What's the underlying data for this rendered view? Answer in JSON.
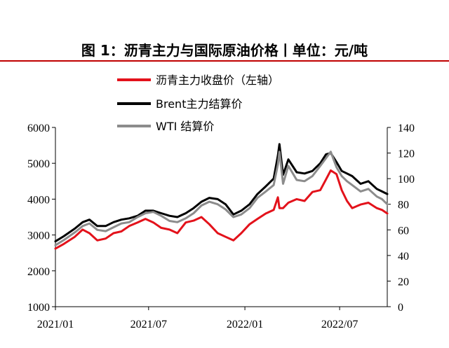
{
  "title": "图 1：沥青主力与国际原油价格丨单位：元/吨",
  "colors": {
    "asphalt": "#e3121b",
    "brent": "#000000",
    "wti": "#8c8c8c",
    "title_rule": "#c00000"
  },
  "chart_data": {
    "type": "line",
    "title": "图 1：沥青主力与国际原油价格丨单位：元/吨",
    "x_tick_labels": [
      "2021/01",
      "2021/07",
      "2022/01",
      "2022/07"
    ],
    "x_range": [
      "2021-01-04",
      "2022-09-30"
    ],
    "y_left": {
      "ticks": [
        "1000",
        "2000",
        "3000",
        "4000",
        "5000",
        "6000"
      ],
      "range": [
        1000,
        6000
      ]
    },
    "y_right": {
      "ticks": [
        "0",
        "20",
        "40",
        "60",
        "80",
        "100",
        "120",
        "140"
      ],
      "range": [
        0,
        140
      ]
    },
    "legend": [
      "沥青主力收盘价（左轴）",
      "Brent主力结算价",
      "WTI 结算价"
    ],
    "legend_placement": "top-center",
    "grid": false,
    "series": [
      {
        "name": "沥青主力收盘价（左轴）",
        "axis": "left",
        "x": [
          "2021-01-04",
          "2021-01-20",
          "2021-02-10",
          "2021-02-25",
          "2021-03-10",
          "2021-03-25",
          "2021-04-10",
          "2021-04-25",
          "2021-05-10",
          "2021-05-25",
          "2021-06-10",
          "2021-06-25",
          "2021-07-10",
          "2021-07-25",
          "2021-08-10",
          "2021-08-25",
          "2021-09-10",
          "2021-09-25",
          "2021-10-10",
          "2021-10-25",
          "2021-11-10",
          "2021-11-25",
          "2021-12-10",
          "2021-12-25",
          "2022-01-10",
          "2022-01-25",
          "2022-02-10",
          "2022-02-25",
          "2022-03-05",
          "2022-03-08",
          "2022-03-15",
          "2022-03-25",
          "2022-04-10",
          "2022-04-25",
          "2022-05-10",
          "2022-05-25",
          "2022-06-05",
          "2022-06-14",
          "2022-06-25",
          "2022-07-05",
          "2022-07-15",
          "2022-07-25",
          "2022-08-10",
          "2022-08-25",
          "2022-09-10",
          "2022-09-20",
          "2022-09-30"
        ],
        "y": [
          2620,
          2750,
          2950,
          3150,
          3050,
          2850,
          2900,
          3050,
          3100,
          3250,
          3350,
          3450,
          3350,
          3200,
          3150,
          3050,
          3350,
          3400,
          3500,
          3300,
          3050,
          2950,
          2850,
          3050,
          3300,
          3450,
          3600,
          3700,
          4050,
          3750,
          3750,
          3900,
          4000,
          3950,
          4200,
          4250,
          4550,
          4800,
          4700,
          4250,
          3950,
          3750,
          3850,
          3900,
          3750,
          3700,
          3600
        ]
      },
      {
        "name": "Brent主力结算价",
        "axis": "right",
        "x": [
          "2021-01-04",
          "2021-01-20",
          "2021-02-10",
          "2021-02-25",
          "2021-03-10",
          "2021-03-25",
          "2021-04-10",
          "2021-04-25",
          "2021-05-10",
          "2021-05-25",
          "2021-06-10",
          "2021-06-25",
          "2021-07-10",
          "2021-07-25",
          "2021-08-10",
          "2021-08-25",
          "2021-09-10",
          "2021-09-25",
          "2021-10-10",
          "2021-10-25",
          "2021-11-10",
          "2021-11-25",
          "2021-12-10",
          "2021-12-25",
          "2022-01-10",
          "2022-01-25",
          "2022-02-10",
          "2022-02-25",
          "2022-03-05",
          "2022-03-08",
          "2022-03-15",
          "2022-03-25",
          "2022-04-10",
          "2022-04-25",
          "2022-05-10",
          "2022-05-25",
          "2022-06-05",
          "2022-06-14",
          "2022-06-25",
          "2022-07-05",
          "2022-07-15",
          "2022-07-25",
          "2022-08-10",
          "2022-08-25",
          "2022-09-10",
          "2022-09-20",
          "2022-09-30"
        ],
        "y": [
          51,
          55,
          61,
          66,
          68,
          63,
          63,
          66,
          68,
          69,
          71,
          75,
          75,
          73,
          71,
          70,
          73,
          77,
          82,
          85,
          84,
          80,
          72,
          75,
          80,
          88,
          94,
          100,
          118,
          127,
          103,
          115,
          105,
          104,
          106,
          112,
          119,
          120,
          113,
          106,
          104,
          102,
          96,
          98,
          92,
          90,
          88
        ]
      },
      {
        "name": "WTI 结算价",
        "axis": "right",
        "x": [
          "2021-01-04",
          "2021-01-20",
          "2021-02-10",
          "2021-02-25",
          "2021-03-10",
          "2021-03-25",
          "2021-04-10",
          "2021-04-25",
          "2021-05-10",
          "2021-05-25",
          "2021-06-10",
          "2021-06-25",
          "2021-07-10",
          "2021-07-25",
          "2021-08-10",
          "2021-08-25",
          "2021-09-10",
          "2021-09-25",
          "2021-10-10",
          "2021-10-25",
          "2021-11-10",
          "2021-11-25",
          "2021-12-10",
          "2021-12-25",
          "2022-01-10",
          "2022-01-25",
          "2022-02-10",
          "2022-02-25",
          "2022-03-05",
          "2022-03-08",
          "2022-03-15",
          "2022-03-25",
          "2022-04-10",
          "2022-04-25",
          "2022-05-10",
          "2022-05-25",
          "2022-06-05",
          "2022-06-14",
          "2022-06-25",
          "2022-07-05",
          "2022-07-15",
          "2022-07-25",
          "2022-08-10",
          "2022-08-25",
          "2022-09-10",
          "2022-09-20",
          "2022-09-30"
        ],
        "y": [
          48,
          52,
          58,
          63,
          65,
          60,
          59,
          62,
          65,
          66,
          70,
          73,
          74,
          71,
          67,
          66,
          69,
          73,
          79,
          82,
          80,
          76,
          70,
          72,
          77,
          85,
          90,
          95,
          111,
          121,
          96,
          110,
          99,
          98,
          102,
          110,
          116,
          121,
          109,
          102,
          98,
          95,
          90,
          92,
          86,
          84,
          80
        ]
      }
    ]
  }
}
